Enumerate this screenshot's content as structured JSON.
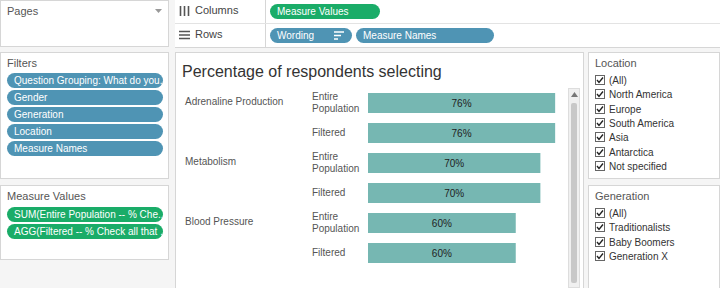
{
  "pages": {
    "title": "Pages"
  },
  "shelves": {
    "columns": {
      "label": "Columns",
      "pills": [
        "Measure Values"
      ]
    },
    "rows": {
      "label": "Rows",
      "pills": [
        "Wording",
        "Measure Names"
      ]
    }
  },
  "filters": {
    "title": "Filters",
    "pills": [
      "Question Grouping: What do you..",
      "Gender",
      "Generation",
      "Location",
      "Measure Names"
    ]
  },
  "measure_values": {
    "title": "Measure Values",
    "pills": [
      "SUM(Entire Population -- % Che..",
      "AGG(Filtered -- % Check all that .."
    ]
  },
  "chart_data": {
    "type": "bar",
    "orientation": "horizontal",
    "title": "Percentage of respondents selecting",
    "categories": [
      "Adrenaline Production",
      "Metabolism",
      "Blood Pressure"
    ],
    "series": [
      {
        "name": "Entire Population",
        "color": "#76b7b2",
        "values": [
          76,
          70,
          60
        ],
        "value_labels": [
          "76%",
          "70%",
          "60%"
        ]
      },
      {
        "name": "Filtered",
        "color": "#76b7b2",
        "values": [
          76,
          70,
          60
        ],
        "value_labels": [
          "76%",
          "70%",
          "60%"
        ]
      }
    ],
    "xlim": [
      0,
      80
    ],
    "data_labels": true,
    "tick_labels": false
  },
  "location": {
    "title": "Location",
    "options": [
      "(All)",
      "North America",
      "Europe",
      "South America",
      "Asia",
      "Antarctica",
      "Not specified"
    ]
  },
  "generation": {
    "title": "Generation",
    "options": [
      "(All)",
      "Traditionalists",
      "Baby Boomers",
      "Generation X"
    ]
  }
}
